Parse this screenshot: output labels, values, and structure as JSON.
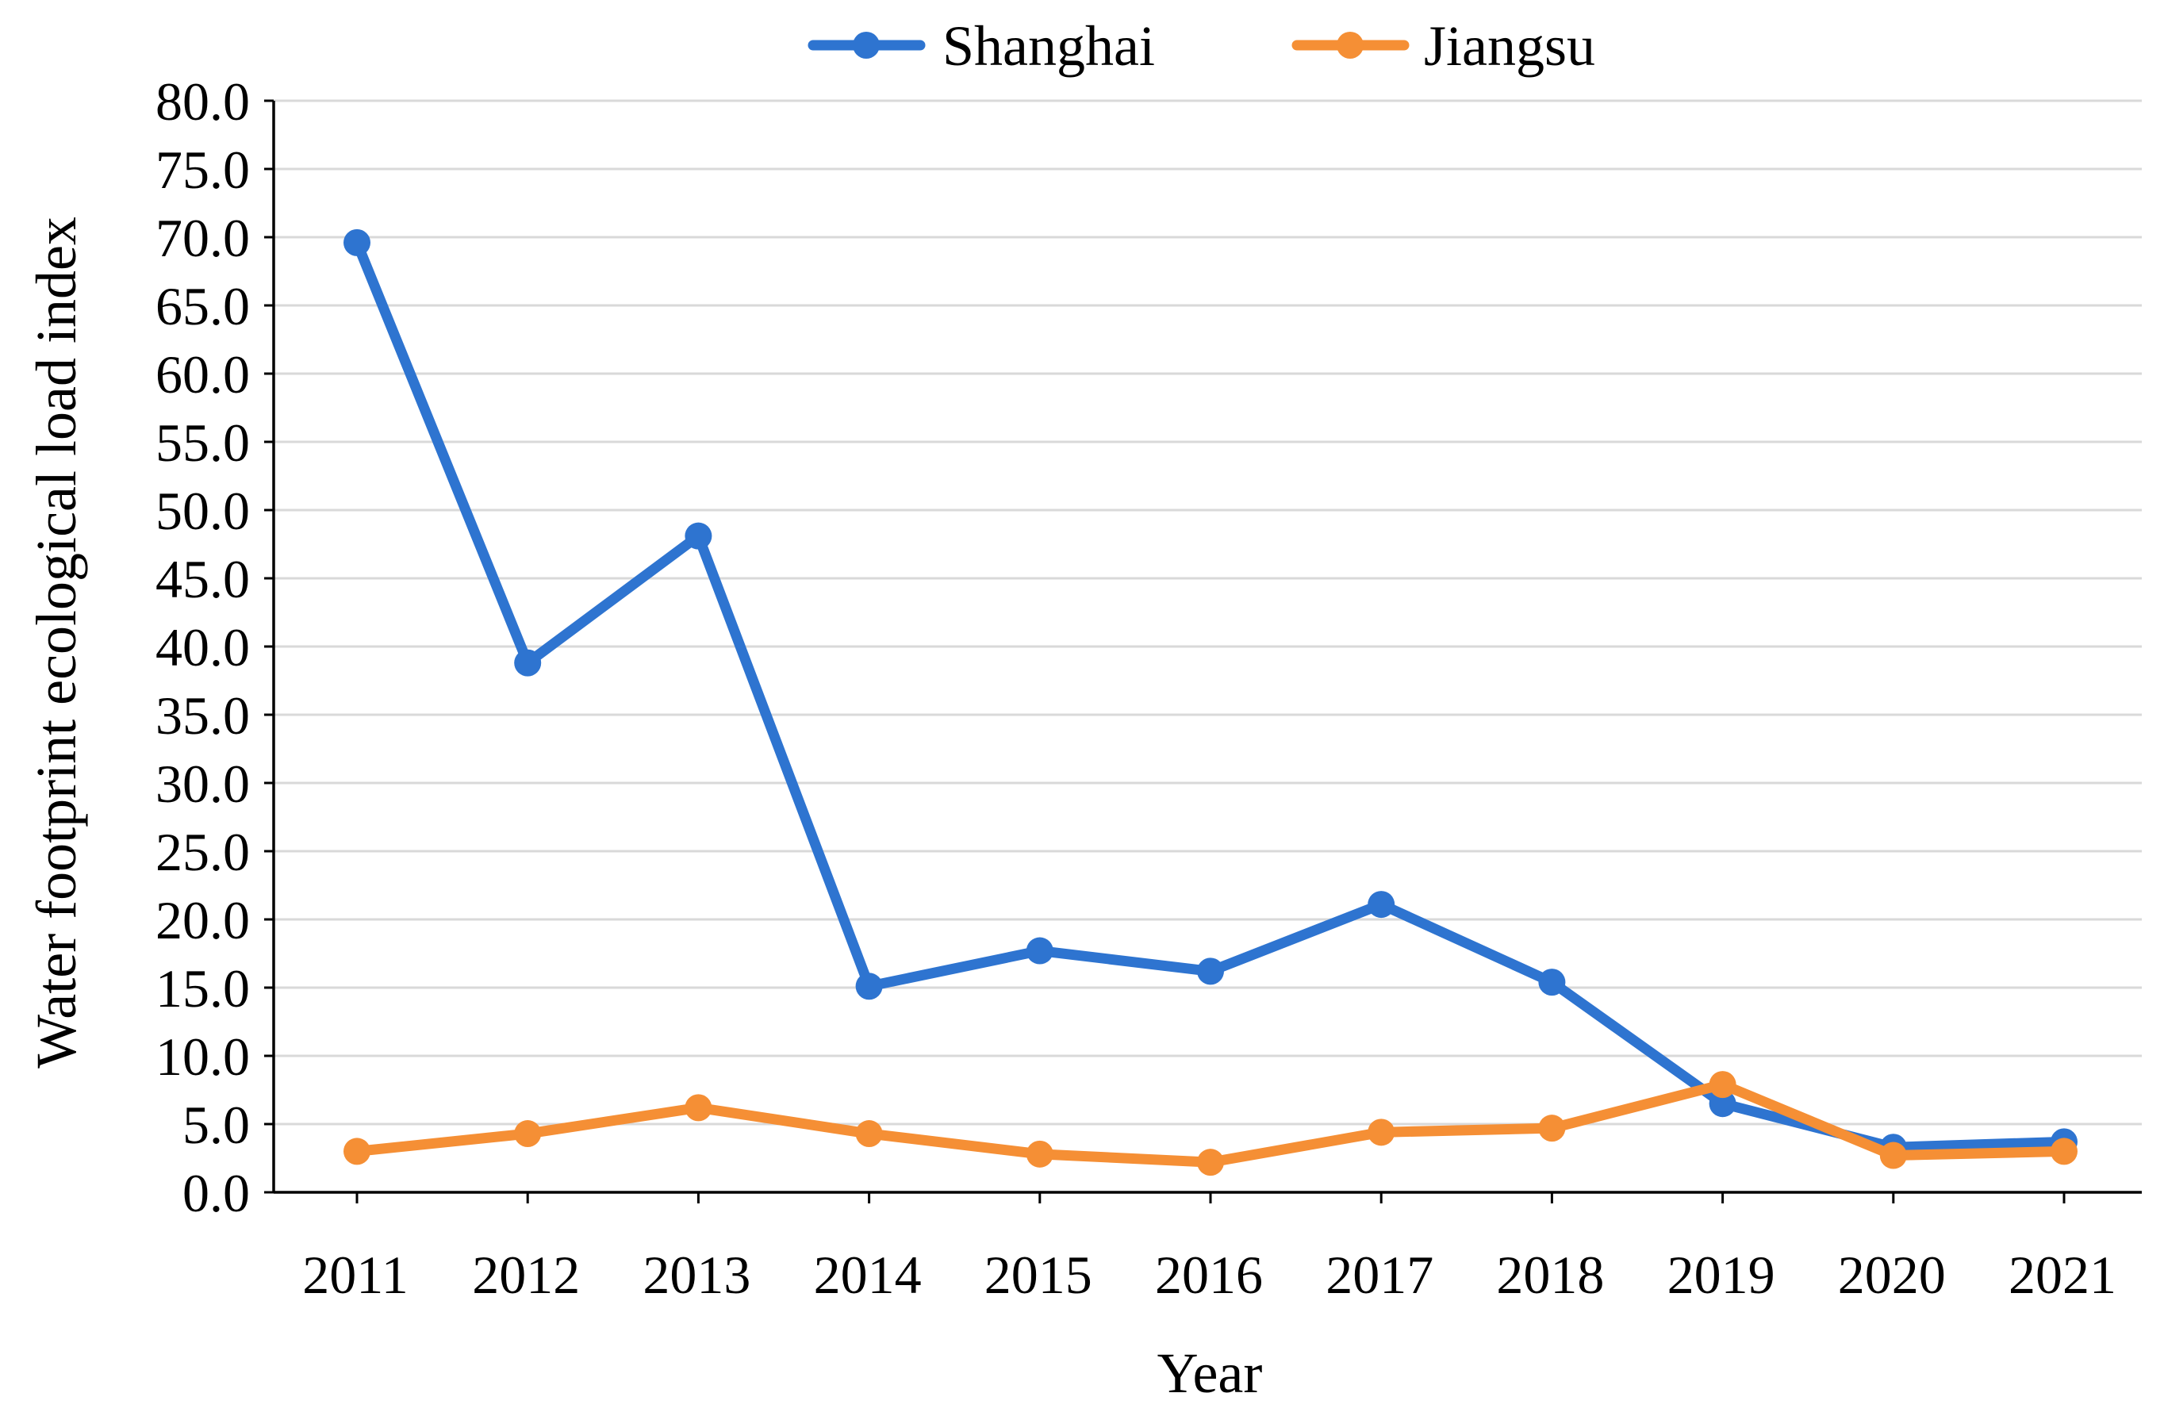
{
  "chart_data": {
    "type": "line",
    "title": "",
    "xlabel": "Year",
    "ylabel": "Water footprint ecological load index",
    "categories": [
      "2011",
      "2012",
      "2013",
      "2014",
      "2015",
      "2016",
      "2017",
      "2018",
      "2019",
      "2020",
      "2021"
    ],
    "series": [
      {
        "name": "Shanghai",
        "color": "#2e74d0",
        "values": [
          69.6,
          38.8,
          48.1,
          15.1,
          17.7,
          16.2,
          21.1,
          15.4,
          6.5,
          3.3,
          3.7
        ]
      },
      {
        "name": "Jiangsu",
        "color": "#f58f35",
        "values": [
          3.0,
          4.3,
          6.2,
          4.3,
          2.8,
          2.2,
          4.4,
          4.7,
          7.9,
          2.7,
          3.0
        ]
      }
    ],
    "ylim": [
      0,
      80
    ],
    "yticks": [
      "0.0",
      "5.0",
      "10.0",
      "15.0",
      "20.0",
      "25.0",
      "30.0",
      "35.0",
      "40.0",
      "45.0",
      "50.0",
      "55.0",
      "60.0",
      "65.0",
      "70.0",
      "75.0",
      "80.0"
    ],
    "grid": true,
    "legend_position": "top-center"
  }
}
